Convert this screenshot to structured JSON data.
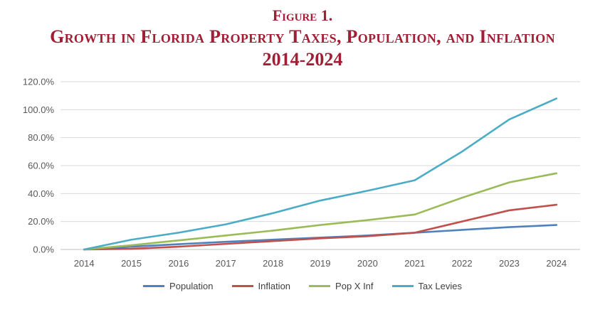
{
  "title": {
    "line1": "Figure 1.",
    "line2": "Growth in Florida Property Taxes,  Population, and Inflation",
    "line3": "2014-2024"
  },
  "colors": {
    "title": "#A21E35",
    "gridline": "#D9D9D9",
    "axis_line": "#BFBFBF",
    "axis_text": "#595959",
    "legend_text": "#404040"
  },
  "chart_data": {
    "type": "line",
    "x_labels": [
      "2014",
      "2015",
      "2016",
      "2017",
      "2018",
      "2019",
      "2020",
      "2021",
      "2022",
      "2023",
      "2024"
    ],
    "series": [
      {
        "name": "Population",
        "color": "#4F81BD",
        "values": [
          0,
          2,
          3.8,
          5.5,
          7,
          8.5,
          10,
          12,
          14,
          16,
          17.5
        ]
      },
      {
        "name": "Inflation",
        "color": "#C0504D",
        "values": [
          0,
          0.5,
          2,
          4,
          6,
          8,
          9.5,
          12,
          20,
          28,
          32
        ]
      },
      {
        "name": "Pop X Inf",
        "color": "#9BBB59",
        "values": [
          0,
          3,
          6.5,
          10,
          13.5,
          17.5,
          21,
          25,
          37,
          48,
          54.5
        ]
      },
      {
        "name": "Tax Levies",
        "color": "#4BACC6",
        "values": [
          0,
          7,
          12,
          18,
          26,
          35,
          42,
          49.5,
          70,
          93,
          108
        ]
      }
    ],
    "ylim": [
      0,
      120
    ],
    "ytick_values": [
      0,
      20,
      40,
      60,
      80,
      100,
      120
    ],
    "ytick_labels": [
      "0.0%",
      "20.0%",
      "40.0%",
      "60.0%",
      "80.0%",
      "100.0%",
      "120.0%"
    ],
    "grid": true,
    "legend_position": "bottom"
  }
}
